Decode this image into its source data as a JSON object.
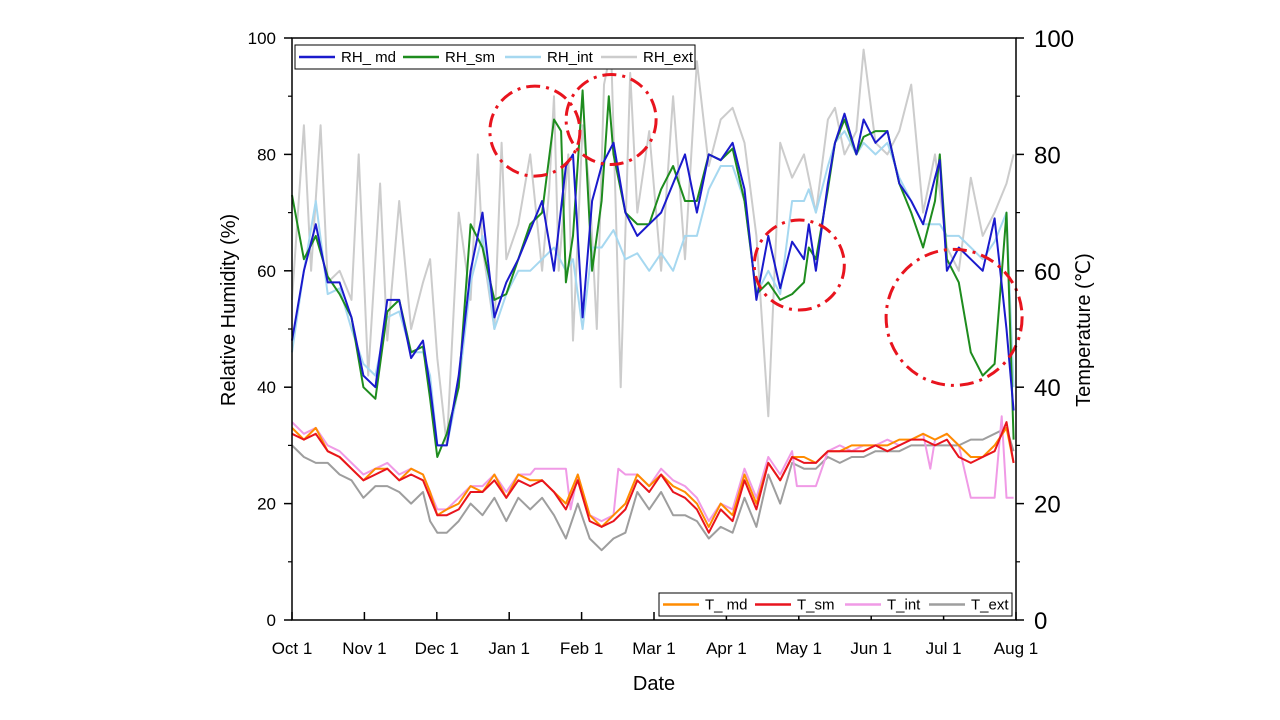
{
  "chart_data": {
    "type": "line",
    "xlabel": "Date",
    "ylabel_left": "Relative Humidity (%)",
    "ylabel_right": "Temperature (℃)",
    "ylim_left": [
      0,
      100
    ],
    "ylim_right": [
      0,
      100
    ],
    "x_ticks": [
      "Oct 1",
      "Nov 1",
      "Dec 1",
      "Jan 1",
      "Feb 1",
      "Mar 1",
      "Apr 1",
      "May 1",
      "Jun 1",
      "Jul 1",
      "Aug 1"
    ],
    "y_ticks_left": [
      0,
      20,
      40,
      60,
      80,
      100
    ],
    "y_ticks_right": [
      0,
      20,
      40,
      60,
      80,
      100
    ],
    "grid": false,
    "legend_rh_position": "top",
    "legend_t_position": "bottom-right",
    "colors": {
      "RH_ md": "#1a1acc",
      "RH_sm": "#1e8c1e",
      "RH_int": "#a6d8f0",
      "RH_ext": "#cccccc",
      "T_ md": "#ff8c00",
      "T_sm": "#e8141e",
      "T_int": "#f09ae6",
      "T_ext": "#9e9e9e",
      "highlight": "#e8141e"
    },
    "day_offsets_note": "x values are days since Oct 1",
    "series_rh": [
      {
        "name": "RH_ md",
        "x": [
          0,
          5,
          10,
          15,
          20,
          25,
          30,
          35,
          40,
          45,
          50,
          55,
          58,
          61,
          65,
          70,
          75,
          80,
          85,
          90,
          95,
          100,
          105,
          110,
          115,
          118,
          122,
          126,
          130,
          135,
          140,
          145,
          150,
          155,
          160,
          165,
          170,
          175,
          180,
          185,
          190,
          195,
          200,
          205,
          210,
          215,
          217,
          220,
          225,
          228,
          232,
          237,
          240,
          245,
          250,
          255,
          260,
          265,
          270,
          272,
          275,
          280,
          285,
          290,
          295,
          300,
          303
        ],
        "values": [
          48,
          60,
          68,
          58,
          58,
          52,
          42,
          40,
          55,
          55,
          45,
          48,
          40,
          30,
          30,
          42,
          60,
          70,
          52,
          58,
          62,
          67,
          72,
          60,
          78,
          80,
          52,
          72,
          78,
          82,
          70,
          66,
          68,
          70,
          75,
          80,
          70,
          80,
          79,
          82,
          74,
          55,
          66,
          57,
          65,
          62,
          68,
          60,
          75,
          82,
          87,
          80,
          86,
          82,
          84,
          75,
          72,
          68,
          76,
          79,
          60,
          64,
          62,
          60,
          69,
          50,
          36
        ]
      },
      {
        "name": "RH_sm",
        "x": [
          0,
          5,
          10,
          15,
          20,
          25,
          30,
          35,
          40,
          45,
          50,
          55,
          58,
          61,
          65,
          70,
          75,
          80,
          85,
          90,
          95,
          100,
          105,
          110,
          113,
          115,
          118,
          122,
          126,
          130,
          133,
          135,
          140,
          145,
          150,
          155,
          160,
          165,
          170,
          175,
          180,
          185,
          190,
          195,
          200,
          205,
          210,
          215,
          217,
          220,
          225,
          228,
          232,
          237,
          240,
          245,
          250,
          255,
          260,
          265,
          270,
          272,
          275,
          280,
          285,
          290,
          295,
          300,
          303
        ],
        "values": [
          73,
          62,
          66,
          59,
          56,
          52,
          40,
          38,
          53,
          55,
          46,
          47,
          38,
          28,
          32,
          40,
          68,
          64,
          55,
          56,
          62,
          68,
          70,
          86,
          84,
          58,
          66,
          91,
          60,
          72,
          90,
          80,
          70,
          68,
          68,
          74,
          78,
          72,
          72,
          80,
          79,
          81,
          72,
          56,
          58,
          55,
          56,
          58,
          64,
          62,
          74,
          82,
          86,
          80,
          83,
          84,
          84,
          75,
          70,
          64,
          72,
          80,
          62,
          58,
          46,
          42,
          44,
          70,
          31
        ]
      },
      {
        "name": "RH_int",
        "x": [
          0,
          5,
          10,
          15,
          20,
          25,
          30,
          35,
          40,
          45,
          50,
          55,
          58,
          61,
          65,
          70,
          75,
          80,
          85,
          90,
          95,
          100,
          105,
          110,
          115,
          118,
          122,
          126,
          130,
          135,
          140,
          145,
          150,
          155,
          160,
          165,
          170,
          175,
          180,
          185,
          190,
          195,
          200,
          205,
          210,
          215,
          217,
          220,
          225,
          228,
          232,
          237,
          240,
          245,
          250,
          255,
          260,
          265,
          270,
          272,
          275,
          280,
          285,
          290,
          295,
          300,
          303
        ],
        "values": [
          46,
          60,
          72,
          56,
          57,
          50,
          44,
          42,
          52,
          53,
          46,
          46,
          42,
          30,
          30,
          40,
          58,
          66,
          50,
          56,
          60,
          60,
          62,
          64,
          60,
          62,
          50,
          64,
          64,
          67,
          62,
          63,
          60,
          63,
          60,
          66,
          66,
          74,
          78,
          78,
          72,
          56,
          60,
          56,
          72,
          72,
          74,
          70,
          78,
          82,
          84,
          80,
          82,
          80,
          82,
          76,
          72,
          68,
          68,
          68,
          66,
          66,
          64,
          62,
          65,
          70,
          40
        ]
      },
      {
        "name": "RH_ext",
        "x": [
          0,
          5,
          8,
          12,
          15,
          20,
          25,
          28,
          32,
          37,
          40,
          45,
          50,
          55,
          58,
          61,
          65,
          70,
          75,
          78,
          80,
          85,
          88,
          90,
          95,
          100,
          105,
          108,
          110,
          112,
          116,
          118,
          120,
          122,
          125,
          128,
          131,
          134,
          136,
          138,
          142,
          145,
          150,
          155,
          160,
          165,
          170,
          175,
          180,
          185,
          190,
          195,
          200,
          205,
          210,
          215,
          220,
          225,
          228,
          232,
          237,
          240,
          245,
          250,
          255,
          260,
          265,
          270,
          275,
          280,
          285,
          290,
          295,
          300,
          303
        ],
        "values": [
          55,
          85,
          60,
          85,
          58,
          60,
          55,
          80,
          42,
          75,
          48,
          72,
          50,
          58,
          62,
          45,
          30,
          70,
          55,
          80,
          64,
          50,
          82,
          62,
          68,
          80,
          60,
          74,
          90,
          60,
          80,
          48,
          66,
          85,
          74,
          50,
          92,
          98,
          70,
          40,
          94,
          70,
          84,
          60,
          90,
          62,
          96,
          78,
          86,
          88,
          82,
          66,
          35,
          82,
          76,
          80,
          70,
          86,
          88,
          80,
          84,
          98,
          82,
          80,
          84,
          92,
          70,
          80,
          64,
          60,
          76,
          66,
          70,
          75,
          80
        ]
      }
    ],
    "series_t": [
      {
        "name": "T_ md",
        "x": [
          0,
          5,
          10,
          15,
          20,
          25,
          30,
          35,
          40,
          45,
          50,
          55,
          58,
          61,
          65,
          70,
          75,
          80,
          85,
          90,
          95,
          100,
          105,
          110,
          115,
          120,
          125,
          130,
          135,
          140,
          145,
          150,
          155,
          160,
          165,
          170,
          175,
          180,
          185,
          190,
          195,
          200,
          205,
          210,
          215,
          220,
          225,
          230,
          235,
          240,
          245,
          250,
          255,
          260,
          265,
          270,
          275,
          280,
          285,
          290,
          295,
          300,
          303
        ],
        "values": [
          33,
          31,
          33,
          29,
          28,
          26,
          24,
          26,
          26,
          24,
          26,
          25,
          22,
          18,
          19,
          20,
          23,
          22,
          25,
          21,
          25,
          24,
          24,
          22,
          20,
          25,
          18,
          16,
          18,
          20,
          25,
          23,
          25,
          23,
          22,
          20,
          16,
          20,
          18,
          25,
          20,
          27,
          24,
          28,
          28,
          27,
          29,
          29,
          30,
          30,
          30,
          30,
          31,
          31,
          32,
          31,
          32,
          30,
          28,
          28,
          30,
          33,
          27
        ]
      },
      {
        "name": "T_sm",
        "x": [
          0,
          5,
          10,
          15,
          20,
          25,
          30,
          35,
          40,
          45,
          50,
          55,
          58,
          61,
          65,
          70,
          75,
          80,
          85,
          90,
          95,
          100,
          105,
          110,
          115,
          120,
          125,
          130,
          135,
          140,
          145,
          150,
          155,
          160,
          165,
          170,
          175,
          180,
          185,
          190,
          195,
          200,
          205,
          210,
          215,
          220,
          225,
          230,
          235,
          240,
          245,
          250,
          255,
          260,
          265,
          270,
          275,
          280,
          285,
          290,
          295,
          300,
          303
        ],
        "values": [
          32,
          31,
          32,
          29,
          28,
          26,
          24,
          25,
          26,
          24,
          25,
          24,
          21,
          18,
          18,
          19,
          22,
          22,
          24,
          21,
          24,
          23,
          24,
          22,
          19,
          24,
          17,
          16,
          17,
          19,
          24,
          22,
          25,
          22,
          21,
          19,
          15,
          19,
          17,
          24,
          19,
          27,
          24,
          28,
          27,
          27,
          29,
          29,
          29,
          29,
          30,
          29,
          30,
          31,
          31,
          30,
          31,
          28,
          27,
          28,
          29,
          34,
          27
        ]
      },
      {
        "name": "T_int",
        "x": [
          0,
          5,
          10,
          15,
          20,
          25,
          30,
          35,
          40,
          45,
          50,
          55,
          58,
          61,
          65,
          70,
          75,
          80,
          85,
          90,
          95,
          100,
          102,
          110,
          115,
          117,
          120,
          125,
          130,
          135,
          137,
          140,
          145,
          150,
          155,
          160,
          165,
          170,
          175,
          180,
          185,
          190,
          195,
          200,
          205,
          210,
          212,
          215,
          220,
          225,
          230,
          235,
          240,
          245,
          250,
          255,
          260,
          265,
          268,
          270,
          275,
          280,
          285,
          288,
          295,
          298,
          300,
          303
        ],
        "values": [
          34,
          32,
          33,
          30,
          29,
          27,
          25,
          26,
          27,
          25,
          26,
          25,
          22,
          19,
          19,
          21,
          23,
          23,
          25,
          22,
          25,
          25,
          26,
          26,
          26,
          19,
          25,
          18,
          17,
          18,
          26,
          25,
          25,
          23,
          26,
          24,
          23,
          21,
          17,
          20,
          19,
          26,
          21,
          28,
          25,
          29,
          23,
          23,
          23,
          29,
          30,
          29,
          30,
          30,
          31,
          30,
          31,
          32,
          26,
          31,
          32,
          30,
          21,
          21,
          21,
          35,
          21,
          21
        ]
      },
      {
        "name": "T_ext",
        "x": [
          0,
          5,
          10,
          15,
          20,
          25,
          30,
          35,
          40,
          45,
          50,
          55,
          58,
          61,
          65,
          70,
          75,
          80,
          85,
          90,
          95,
          100,
          105,
          110,
          115,
          120,
          125,
          130,
          135,
          140,
          145,
          150,
          155,
          160,
          165,
          170,
          175,
          180,
          185,
          190,
          195,
          200,
          205,
          210,
          215,
          220,
          225,
          230,
          235,
          240,
          245,
          250,
          255,
          260,
          265,
          270,
          275,
          280,
          285,
          290,
          295,
          300,
          303
        ],
        "values": [
          30,
          28,
          27,
          27,
          25,
          24,
          21,
          23,
          23,
          22,
          20,
          22,
          17,
          15,
          15,
          17,
          20,
          18,
          21,
          17,
          21,
          19,
          21,
          18,
          14,
          20,
          14,
          12,
          14,
          15,
          22,
          19,
          22,
          18,
          18,
          17,
          14,
          16,
          15,
          21,
          16,
          25,
          20,
          27,
          26,
          26,
          28,
          27,
          28,
          28,
          29,
          29,
          29,
          30,
          30,
          30,
          30,
          30,
          31,
          31,
          32,
          33,
          29
        ]
      }
    ],
    "legend_rh": [
      "RH_ md",
      "RH_sm",
      "RH_int",
      "RH_ext"
    ],
    "legend_t": [
      "T_ md",
      "T_sm",
      "T_int",
      "T_ext"
    ],
    "annotations": [
      {
        "shape": "dash-dot ellipse",
        "x_day": 102,
        "y_rh": 84
      },
      {
        "shape": "dash-dot ellipse",
        "x_day": 134,
        "y_rh": 86
      },
      {
        "shape": "dash-dot ellipse",
        "x_day": 213,
        "y_rh": 61
      },
      {
        "shape": "dash-dot ellipse",
        "x_day": 278,
        "y_rh": 52
      }
    ]
  }
}
